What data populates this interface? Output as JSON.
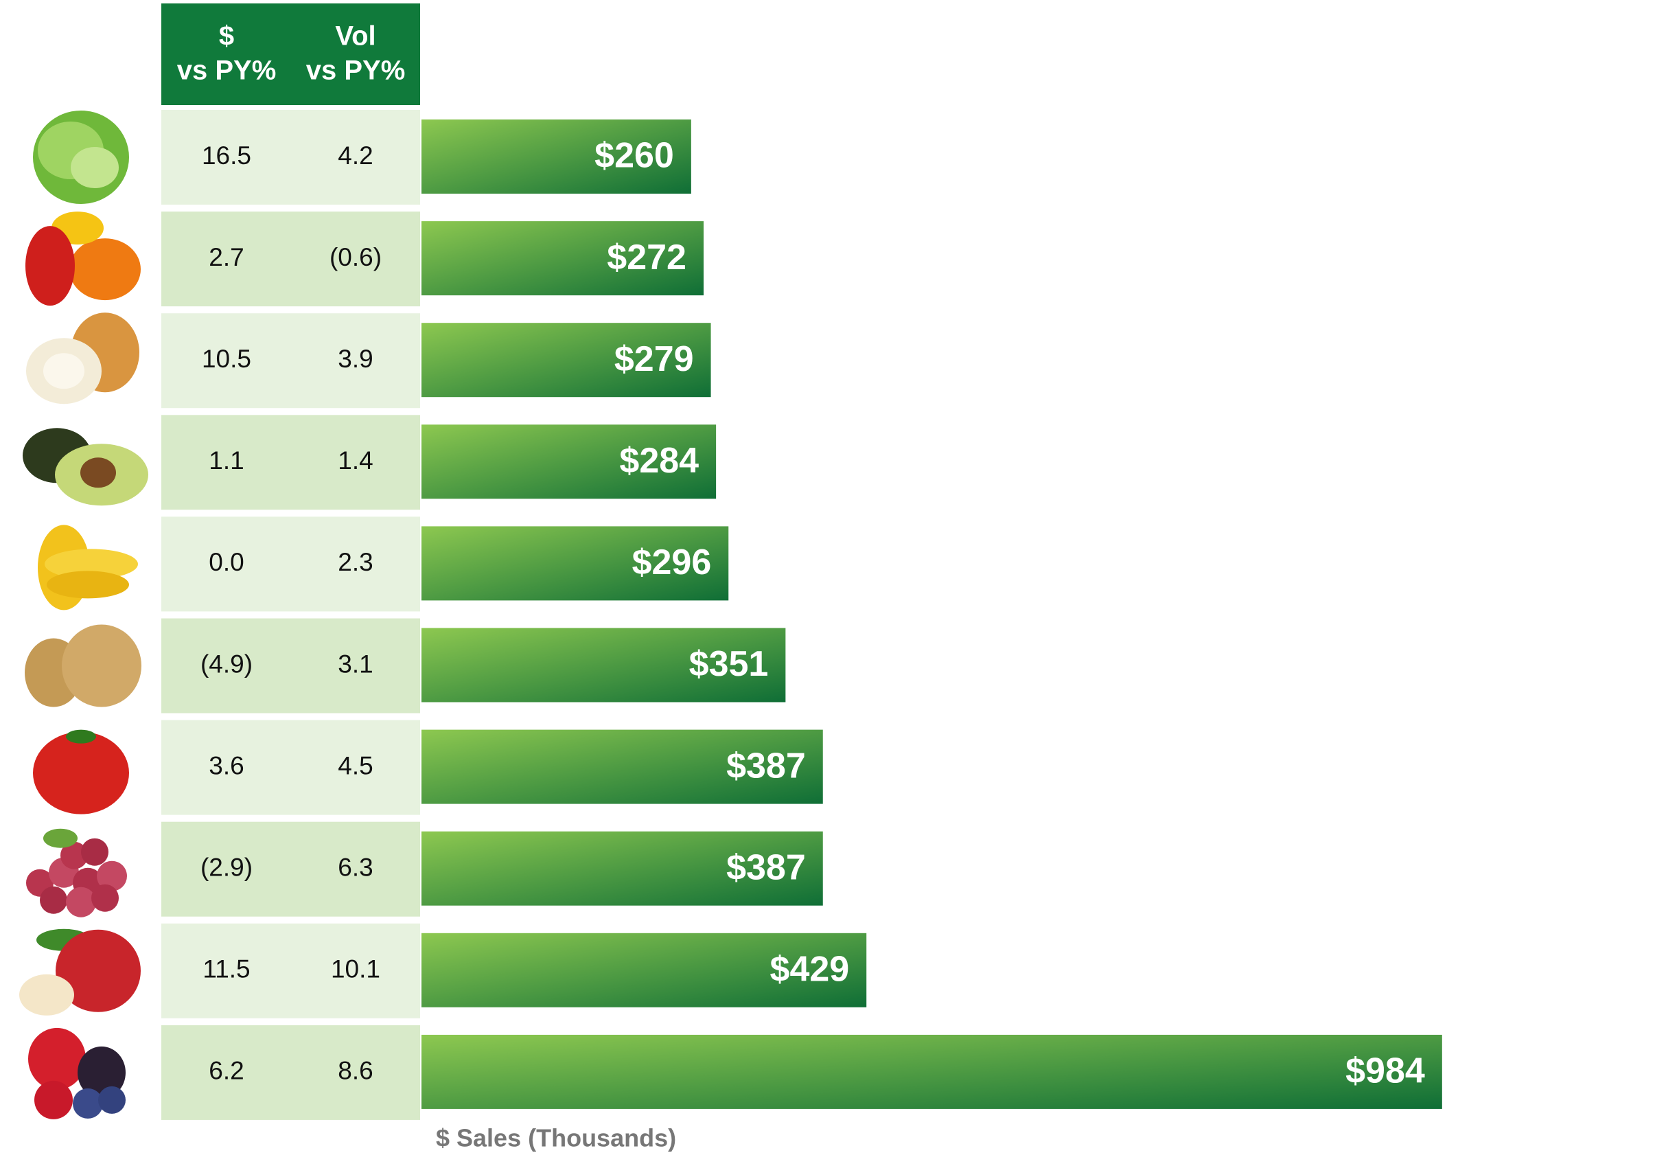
{
  "chart_data": {
    "type": "bar",
    "orientation": "horizontal",
    "x_label": "$ Sales (Thousands)",
    "values": [
      260,
      272,
      279,
      284,
      296,
      351,
      387,
      387,
      429,
      984
    ],
    "value_labels": [
      "$260",
      "$272",
      "$279",
      "$284",
      "$296",
      "$351",
      "$387",
      "$387",
      "$429",
      "$984"
    ],
    "xlim": [
      0,
      1000
    ],
    "color_start": "#8dc850",
    "color_end": "#0f6e36",
    "table": {
      "columns": [
        [
          "$",
          "vs PY%"
        ],
        [
          "Vol",
          "vs PY%"
        ]
      ],
      "rows": [
        [
          "16.5",
          "4.2"
        ],
        [
          "2.7",
          "(0.6)"
        ],
        [
          "10.5",
          "3.9"
        ],
        [
          "1.1",
          "1.4"
        ],
        [
          "0.0",
          "2.3"
        ],
        [
          "(4.9)",
          "3.1"
        ],
        [
          "3.6",
          "4.5"
        ],
        [
          "(2.9)",
          "6.3"
        ],
        [
          "11.5",
          "10.1"
        ],
        [
          "6.2",
          "8.6"
        ]
      ]
    }
  }
}
